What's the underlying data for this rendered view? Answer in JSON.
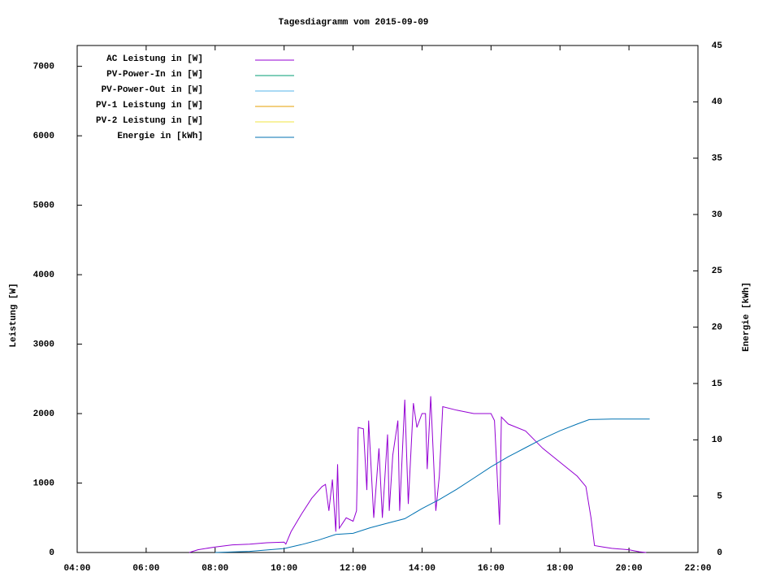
{
  "chart_data": {
    "type": "line",
    "title": "Tagesdiagramm vom 2015-09-09",
    "ylabel": "Leistung [W]",
    "y2label": "Energie [kWh]",
    "xlim": [
      4,
      22
    ],
    "xticks": [
      {
        "value": 4,
        "label": "04:00"
      },
      {
        "value": 6,
        "label": "06:00"
      },
      {
        "value": 8,
        "label": "08:00"
      },
      {
        "value": 10,
        "label": "10:00"
      },
      {
        "value": 12,
        "label": "12:00"
      },
      {
        "value": 14,
        "label": "14:00"
      },
      {
        "value": 16,
        "label": "16:00"
      },
      {
        "value": 18,
        "label": "18:00"
      },
      {
        "value": 20,
        "label": "20:00"
      },
      {
        "value": 22,
        "label": "22:00"
      }
    ],
    "ylim": [
      0,
      7300
    ],
    "yticks": [
      0,
      1000,
      2000,
      3000,
      4000,
      5000,
      6000,
      7000
    ],
    "y2lim": [
      0,
      45
    ],
    "y2ticks": [
      0,
      5,
      10,
      15,
      20,
      25,
      30,
      35,
      40,
      45
    ],
    "legend": "top-left",
    "series": [
      {
        "name": "AC Leistung in [W]",
        "color": "#9400d3",
        "x": [
          7.25,
          7.5,
          8,
          8.5,
          9,
          9.5,
          10,
          10.05,
          10.2,
          10.5,
          10.8,
          11.1,
          11.2,
          11.3,
          11.4,
          11.5,
          11.55,
          11.6,
          11.8,
          12,
          12.1,
          12.15,
          12.3,
          12.4,
          12.45,
          12.6,
          12.75,
          12.85,
          13,
          13.05,
          13.15,
          13.3,
          13.35,
          13.5,
          13.6,
          13.75,
          13.85,
          14,
          14.1,
          14.15,
          14.25,
          14.4,
          14.5,
          14.6,
          15,
          15.5,
          16,
          16.1,
          16.25,
          16.3,
          16.5,
          17,
          17.5,
          18,
          18.5,
          18.75,
          18.9,
          19,
          19.25,
          19.5,
          20,
          20.3,
          20.5
        ],
        "values": [
          0,
          40,
          80,
          110,
          120,
          140,
          150,
          120,
          300,
          550,
          780,
          950,
          980,
          600,
          1050,
          300,
          1270,
          350,
          500,
          450,
          600,
          1800,
          1780,
          900,
          1900,
          500,
          1500,
          500,
          1700,
          600,
          1400,
          1900,
          600,
          2200,
          700,
          2150,
          1800,
          2000,
          2000,
          1200,
          2250,
          600,
          1100,
          2100,
          2050,
          2000,
          2000,
          1900,
          400,
          1950,
          1850,
          1750,
          1500,
          1300,
          1100,
          950,
          500,
          100,
          80,
          60,
          40,
          10,
          0
        ]
      },
      {
        "name": "PV-Power-In in [W]",
        "color": "#009e73",
        "x": [],
        "values": []
      },
      {
        "name": "PV-Power-Out in [W]",
        "color": "#56b4e9",
        "x": [],
        "values": []
      },
      {
        "name": "PV-1 Leistung in [W]",
        "color": "#e69f00",
        "x": [],
        "values": []
      },
      {
        "name": "PV-2 Leistung in [W]",
        "color": "#f0e442",
        "x": [],
        "values": []
      },
      {
        "name": "Energie in [kWh]",
        "color": "#0072b2",
        "axis": "y2",
        "x": [
          8,
          9,
          10,
          10.5,
          11,
          11.5,
          12,
          12.5,
          13,
          13.5,
          14,
          14.5,
          15,
          15.5,
          16,
          16.5,
          17,
          17.5,
          18,
          18.5,
          18.85,
          19.5,
          20.6
        ],
        "values": [
          0,
          0.1,
          0.35,
          0.7,
          1.1,
          1.6,
          1.7,
          2.2,
          2.6,
          3.0,
          3.9,
          4.7,
          5.6,
          6.6,
          7.6,
          8.5,
          9.3,
          10.1,
          10.8,
          11.4,
          11.8,
          11.85,
          11.85
        ]
      }
    ]
  }
}
